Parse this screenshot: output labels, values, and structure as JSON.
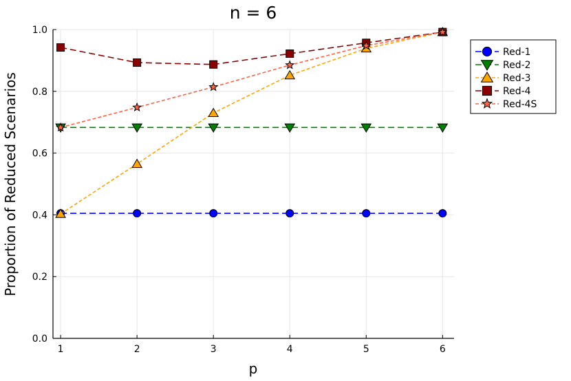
{
  "chart_data": {
    "type": "line",
    "title": "n = 6",
    "xlabel": "p",
    "ylabel": "Proportion of Reduced Scenarios",
    "x": [
      1,
      2,
      3,
      4,
      5,
      6
    ],
    "xlim": [
      0.9,
      6.15
    ],
    "ylim": [
      0,
      1.0
    ],
    "xticks": [
      "1",
      "2",
      "3",
      "4",
      "5",
      "6"
    ],
    "yticks": [
      "0.0",
      "0.2",
      "0.4",
      "0.6",
      "0.8",
      "1.0"
    ],
    "grid": true,
    "legend_position": "top-right, outside plot area",
    "series": [
      {
        "name": "Red-1",
        "color": "#0000ff",
        "marker": "circle",
        "dash": "long",
        "values": [
          0.405,
          0.405,
          0.405,
          0.405,
          0.405,
          0.405
        ]
      },
      {
        "name": "Red-2",
        "color": "#008000",
        "marker": "triangle-down",
        "dash": "long",
        "values": [
          0.683,
          0.683,
          0.683,
          0.683,
          0.683,
          0.683
        ]
      },
      {
        "name": "Red-3",
        "color": "#ffa500",
        "marker": "triangle-up",
        "dash": "short",
        "values": [
          0.403,
          0.565,
          0.73,
          0.852,
          0.939,
          0.992
        ]
      },
      {
        "name": "Red-4",
        "color": "#8b0000",
        "marker": "square",
        "dash": "long",
        "values": [
          0.942,
          0.893,
          0.887,
          0.922,
          0.957,
          0.992
        ]
      },
      {
        "name": "Red-4S",
        "color": "#ff6347",
        "marker": "star",
        "dash": "short",
        "values": [
          0.683,
          0.748,
          0.814,
          0.885,
          0.948,
          0.992
        ]
      }
    ]
  }
}
